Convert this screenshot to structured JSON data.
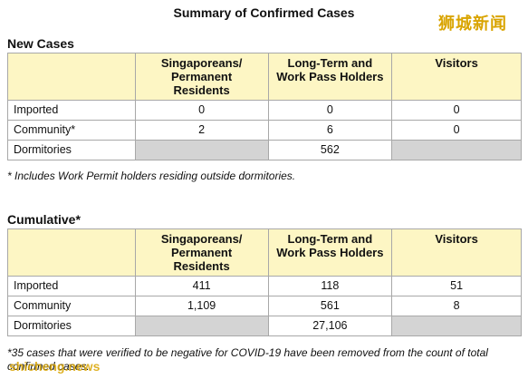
{
  "title": "Summary of Confirmed Cases",
  "logo": "狮城新闻",
  "watermark": "shicheng.news",
  "columns": [
    "",
    "Singaporeans/\nPermanent\nResidents",
    "Long-Term and\nWork Pass Holders",
    "Visitors"
  ],
  "new_cases": {
    "heading": "New Cases",
    "rows": [
      {
        "label": "Imported",
        "values": [
          "0",
          "0",
          "0"
        ]
      },
      {
        "label": "Community*",
        "values": [
          "2",
          "6",
          "0"
        ]
      },
      {
        "label": "Dormitories",
        "values": [
          "",
          "562",
          ""
        ]
      }
    ],
    "note": "* Includes Work Permit holders residing outside dormitories."
  },
  "cumulative": {
    "heading": "Cumulative*",
    "rows": [
      {
        "label": "Imported",
        "values": [
          "411",
          "118",
          "51"
        ]
      },
      {
        "label": "Community",
        "values": [
          "1,109",
          "561",
          "8"
        ]
      },
      {
        "label": "Dormitories",
        "values": [
          "",
          "27,106",
          ""
        ]
      }
    ],
    "note": "*35 cases that were verified to be negative for COVID-19 have been removed from the count of total confirmed cases."
  }
}
